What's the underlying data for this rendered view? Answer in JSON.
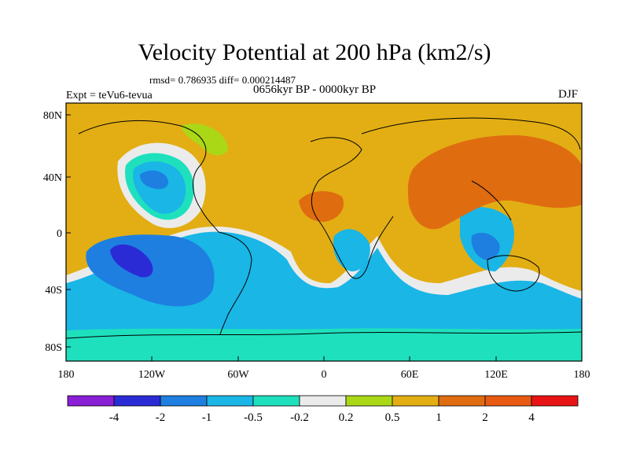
{
  "map": {
    "title": "Velocity Potential at 200 hPa (km2/s)",
    "stats": "rmsd= 0.786935 diff= 0.000214487",
    "experiment": "Expt = teVu6-tevua",
    "period": "0656kyr BP - 0000kyr BP",
    "season": "DJF",
    "lat_ticks": [
      "80N",
      "40N",
      "0",
      "40S",
      "80S"
    ],
    "lon_ticks": [
      "180",
      "120W",
      "60W",
      "0",
      "60E",
      "120E",
      "180"
    ],
    "colors": {
      "le_neg4": "#8a1fd6",
      "neg4_neg2": "#2b2bd6",
      "neg2_neg1": "#1e7fe0",
      "neg1_neg05": "#19b6e6",
      "neg05_neg02": "#1fe0bd",
      "neg02_02": "#ebebeb",
      "p02_05": "#aad817",
      "p05_1": "#e2ae14",
      "p1_2": "#e06c10",
      "p2_4": "#e85a12",
      "ge_4": "#e81414"
    }
  },
  "colorbar": {
    "labels": [
      "-4",
      "-2",
      "-1",
      "-0.5",
      "-0.2",
      "0.2",
      "0.5",
      "1",
      "2",
      "4"
    ]
  }
}
